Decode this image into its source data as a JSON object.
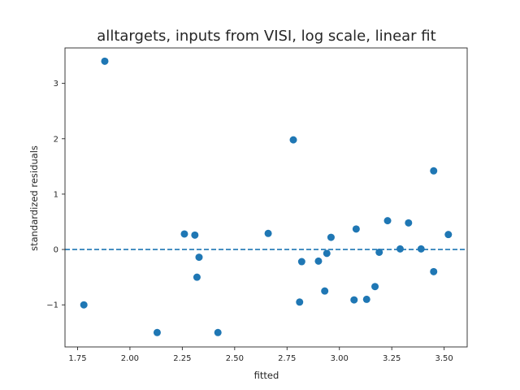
{
  "chart_data": {
    "type": "scatter",
    "title": "alltargets, inputs from VISI, log scale, linear fit",
    "xlabel": "fitted",
    "ylabel": "standardized residuals",
    "xlim": [
      1.69,
      3.61
    ],
    "ylim": [
      -1.76,
      3.64
    ],
    "xticks": [
      1.75,
      2.0,
      2.25,
      2.5,
      2.75,
      3.0,
      3.25,
      3.5
    ],
    "xtick_labels": [
      "1.75",
      "2.00",
      "2.25",
      "2.50",
      "2.75",
      "3.00",
      "3.25",
      "3.50"
    ],
    "yticks": [
      -1,
      0,
      1,
      2,
      3
    ],
    "ytick_labels": [
      "−1",
      "0",
      "1",
      "2",
      "3"
    ],
    "reference_line": {
      "y": 0,
      "style": "dashed"
    },
    "grid": false,
    "point_color": "#1f77b4",
    "points": [
      {
        "x": 1.78,
        "y": -1.0
      },
      {
        "x": 1.88,
        "y": 3.4
      },
      {
        "x": 2.13,
        "y": -1.5
      },
      {
        "x": 2.26,
        "y": 0.28
      },
      {
        "x": 2.31,
        "y": 0.26
      },
      {
        "x": 2.32,
        "y": -0.5
      },
      {
        "x": 2.33,
        "y": -0.14
      },
      {
        "x": 2.42,
        "y": -1.5
      },
      {
        "x": 2.66,
        "y": 0.29
      },
      {
        "x": 2.78,
        "y": 1.98
      },
      {
        "x": 2.81,
        "y": -0.95
      },
      {
        "x": 2.82,
        "y": -0.22
      },
      {
        "x": 2.9,
        "y": -0.21
      },
      {
        "x": 2.93,
        "y": -0.75
      },
      {
        "x": 2.94,
        "y": -0.07
      },
      {
        "x": 2.96,
        "y": 0.22
      },
      {
        "x": 3.07,
        "y": -0.91
      },
      {
        "x": 3.08,
        "y": 0.37
      },
      {
        "x": 3.13,
        "y": -0.9
      },
      {
        "x": 3.17,
        "y": -0.67
      },
      {
        "x": 3.19,
        "y": -0.05
      },
      {
        "x": 3.23,
        "y": 0.52
      },
      {
        "x": 3.29,
        "y": 0.01
      },
      {
        "x": 3.33,
        "y": 0.48
      },
      {
        "x": 3.39,
        "y": 0.01
      },
      {
        "x": 3.45,
        "y": 1.42
      },
      {
        "x": 3.45,
        "y": -0.4
      },
      {
        "x": 3.52,
        "y": 0.27
      }
    ]
  }
}
